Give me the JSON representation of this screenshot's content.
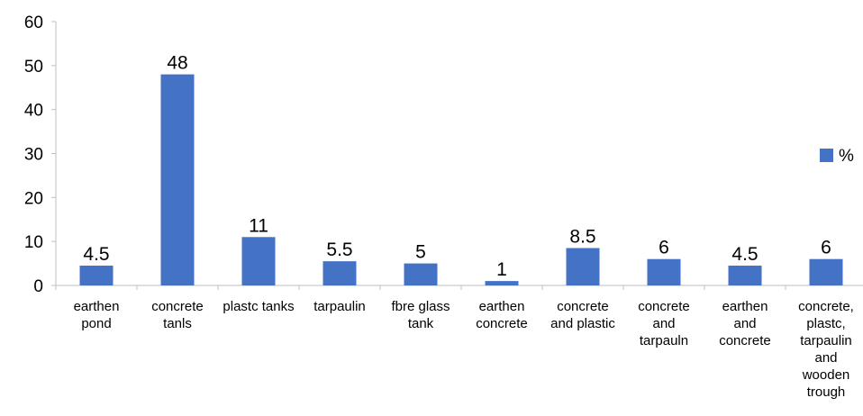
{
  "chart_data": {
    "type": "bar",
    "categories": [
      [
        "earthen",
        "pond"
      ],
      [
        "concrete",
        "tanls"
      ],
      [
        "plastc tanks"
      ],
      [
        "tarpaulin"
      ],
      [
        "fbre glass",
        "tank"
      ],
      [
        "earthen",
        "concrete"
      ],
      [
        "concrete",
        "and plastic"
      ],
      [
        "concrete",
        "and",
        "tarpauln"
      ],
      [
        "earthen",
        "and",
        "concrete"
      ],
      [
        "concrete,",
        "plastc,",
        "tarpaulin",
        "and",
        "wooden",
        "trough"
      ]
    ],
    "series": [
      {
        "name": "%",
        "values": [
          4.5,
          48,
          11,
          5.5,
          5,
          1,
          8.5,
          6,
          4.5,
          6
        ],
        "color": "#4472c4"
      }
    ],
    "data_labels": [
      "4.5",
      "48",
      "11",
      "5.5",
      "5",
      "1",
      "8.5",
      "6",
      "4.5",
      "6"
    ],
    "ylim": [
      0,
      60
    ],
    "yticks": [
      0,
      10,
      20,
      30,
      40,
      50,
      60
    ],
    "grid": false,
    "legend_position": "right"
  }
}
